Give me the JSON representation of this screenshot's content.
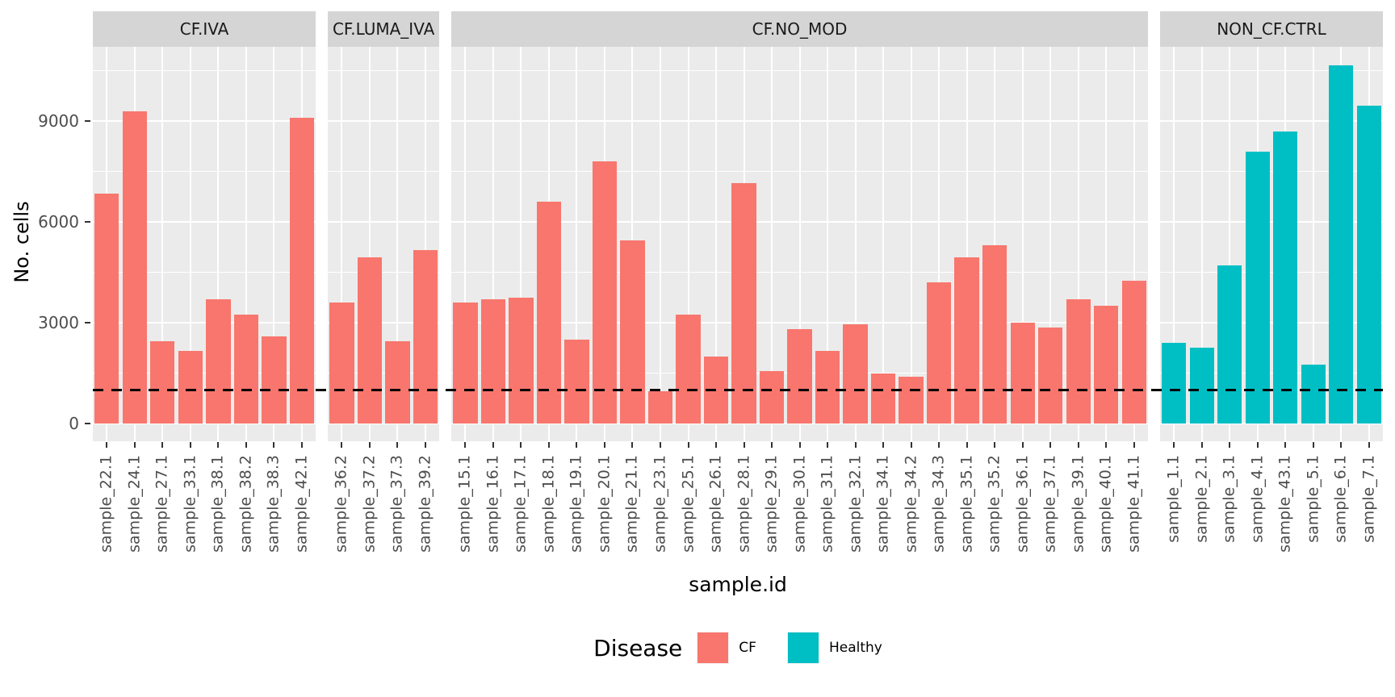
{
  "figure": {
    "y_axis_title": "No. cells",
    "x_axis_title": "sample.id",
    "y_tick_labels": [
      "0",
      "3000",
      "6000",
      "9000"
    ],
    "legend": {
      "title": "Disease",
      "items": [
        {
          "label": "CF",
          "color": "#F8766D"
        },
        {
          "label": "Healthy",
          "color": "#00BFC4"
        }
      ]
    }
  },
  "chart_data": {
    "type": "bar",
    "title": "",
    "xlabel": "sample.id",
    "ylabel": "No. cells",
    "ylim": [
      0,
      11200
    ],
    "y_ticks": [
      0,
      3000,
      6000,
      9000
    ],
    "y_minor_gridlines": [
      1500,
      4500,
      7500,
      10500
    ],
    "grid": "on",
    "legend_position": "bottom",
    "hline": {
      "y": 1000,
      "style": "dashed",
      "color": "#000000"
    },
    "style": {
      "panel_fill": "#EBEBEB",
      "strip_fill": "#D5D5D5",
      "gridline_color": "#FFFFFF",
      "cf_color": "#F8766D",
      "healthy_color": "#00BFC4"
    },
    "facets": [
      {
        "label": "CF.IVA",
        "disease": "CF",
        "categories": [
          "sample_22.1",
          "sample_24.1",
          "sample_27.1",
          "sample_33.1",
          "sample_38.1",
          "sample_38.2",
          "sample_38.3",
          "sample_42.1"
        ],
        "values": [
          6850,
          9300,
          2450,
          2150,
          3700,
          3250,
          2600,
          9100
        ]
      },
      {
        "label": "CF.LUMA_IVA",
        "disease": "CF",
        "categories": [
          "sample_36.2",
          "sample_37.2",
          "sample_37.3",
          "sample_39.2"
        ],
        "values": [
          3600,
          4950,
          2450,
          5150
        ]
      },
      {
        "label": "CF.NO_MOD",
        "disease": "CF",
        "categories": [
          "sample_15.1",
          "sample_16.1",
          "sample_17.1",
          "sample_18.1",
          "sample_19.1",
          "sample_20.1",
          "sample_21.1",
          "sample_23.1",
          "sample_25.1",
          "sample_26.1",
          "sample_28.1",
          "sample_29.1",
          "sample_30.1",
          "sample_31.1",
          "sample_32.1",
          "sample_34.1",
          "sample_34.2",
          "sample_34.3",
          "sample_35.1",
          "sample_35.2",
          "sample_36.1",
          "sample_37.1",
          "sample_39.1",
          "sample_40.1",
          "sample_41.1"
        ],
        "values": [
          3600,
          3700,
          3750,
          6600,
          2500,
          7800,
          5450,
          950,
          3250,
          2000,
          7150,
          1550,
          2800,
          2150,
          2950,
          1500,
          1400,
          4200,
          4950,
          5300,
          3000,
          2850,
          3700,
          3500,
          4250
        ]
      },
      {
        "label": "NON_CF.CTRL",
        "disease": "Healthy",
        "categories": [
          "sample_1.1",
          "sample_2.1",
          "sample_3.1",
          "sample_4.1",
          "sample_43.1",
          "sample_5.1",
          "sample_6.1",
          "sample_7.1"
        ],
        "values": [
          2400,
          2250,
          4700,
          8100,
          8700,
          1750,
          10650,
          9450
        ]
      }
    ]
  }
}
